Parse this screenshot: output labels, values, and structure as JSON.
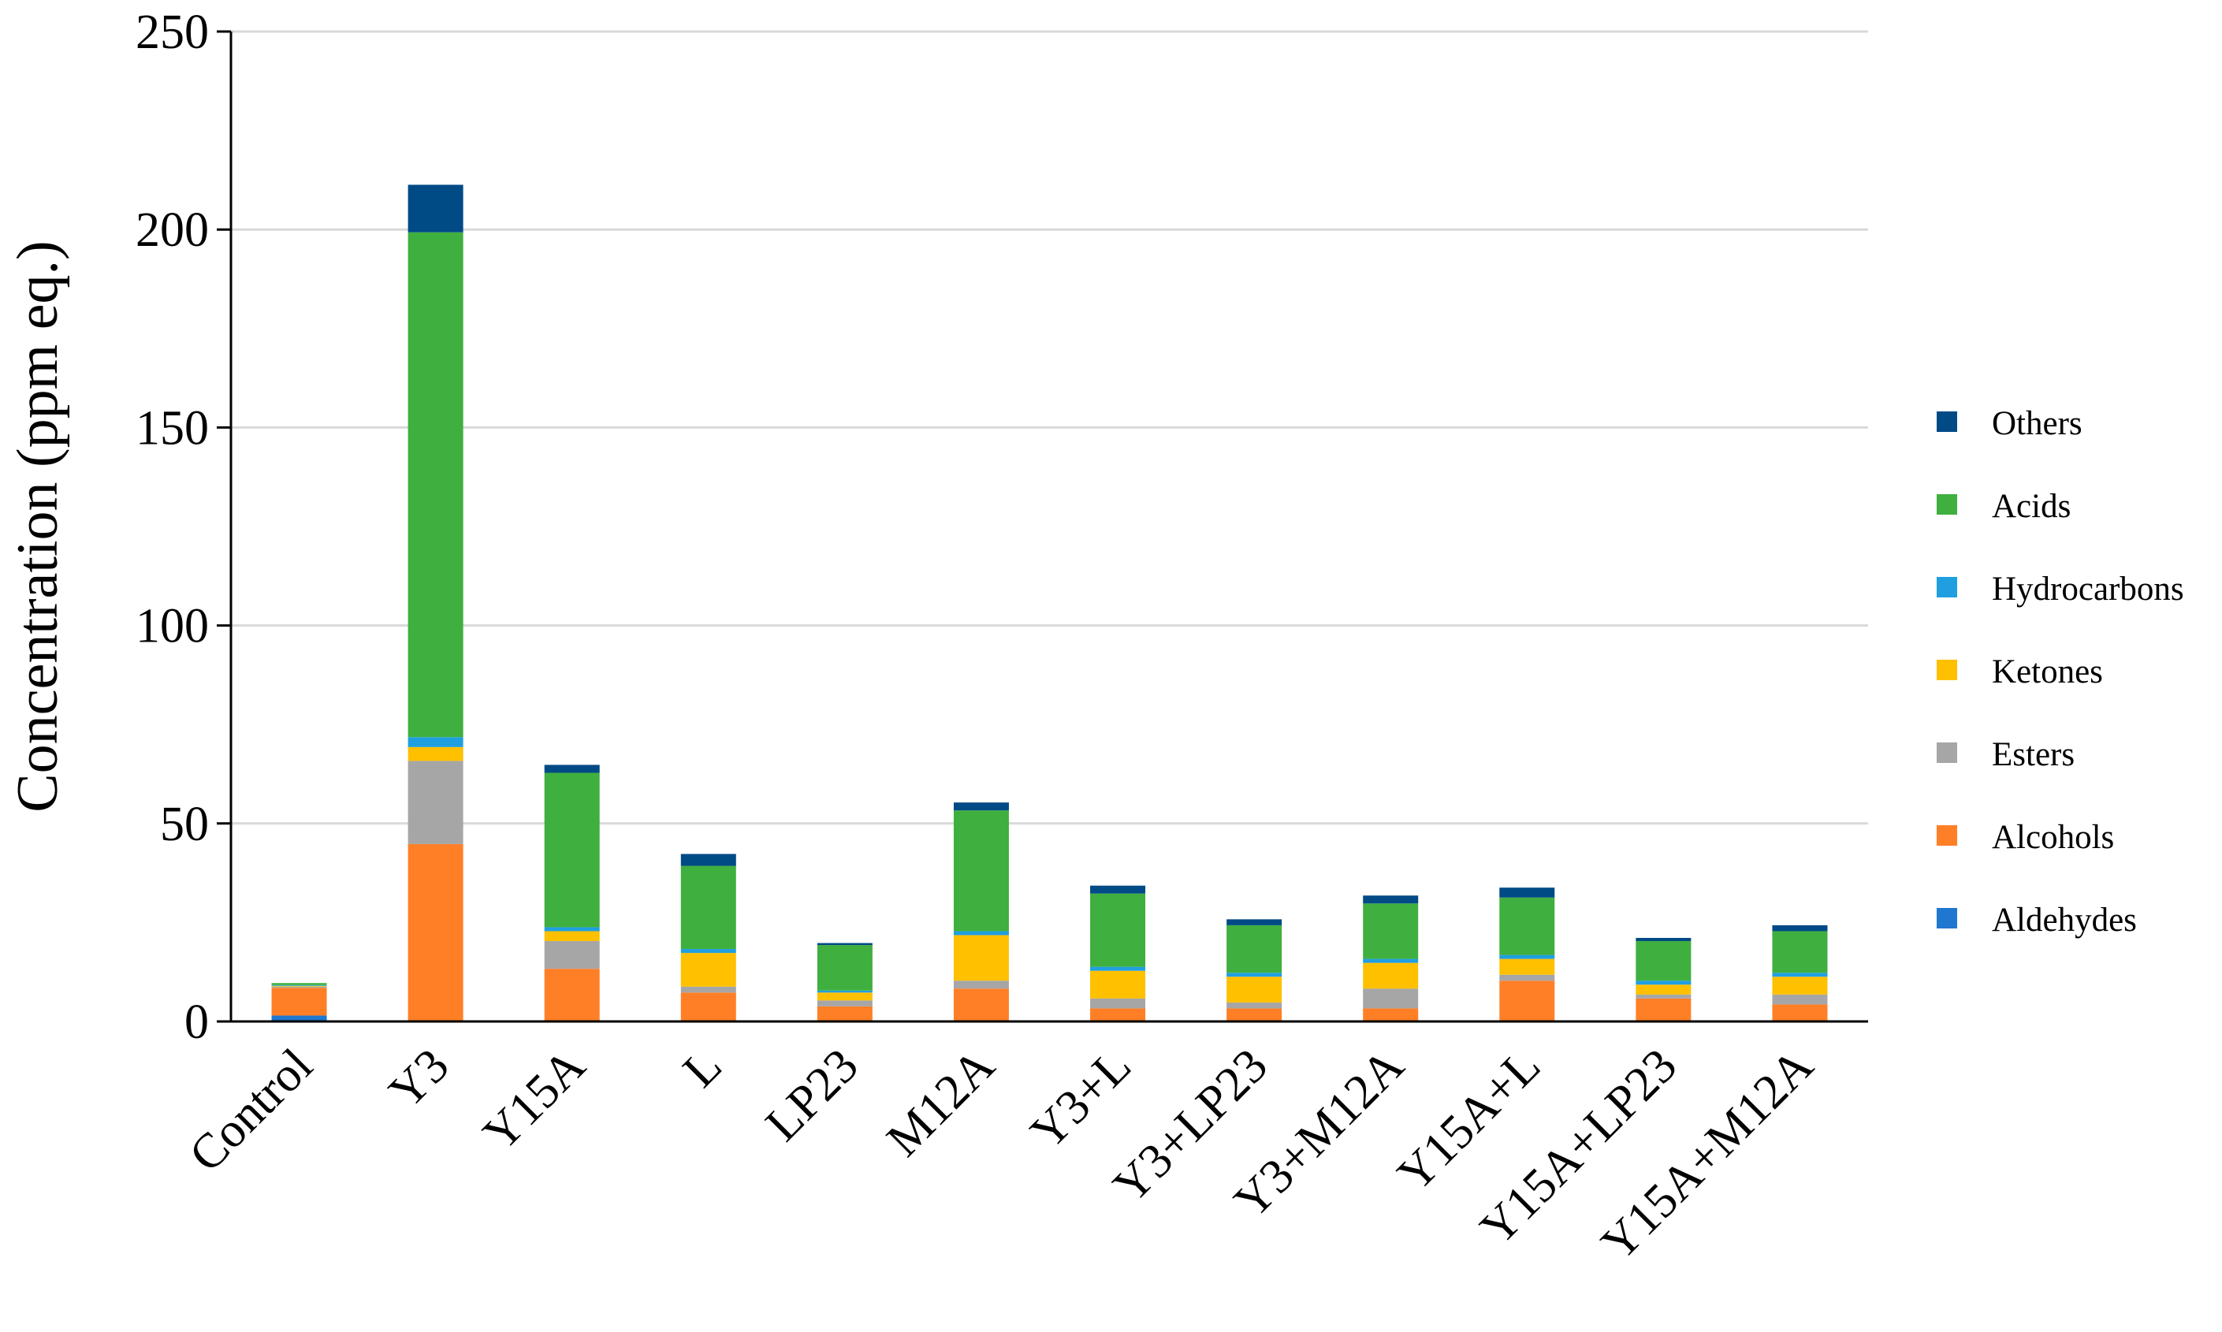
{
  "chart_data": {
    "type": "bar",
    "stacked": true,
    "title": "",
    "xlabel": "",
    "ylabel": "Concentration (ppm eq.)",
    "ylim": [
      0,
      250
    ],
    "yticks": [
      0,
      50,
      100,
      150,
      200,
      250
    ],
    "grid": "horizontal",
    "legend_position": "right",
    "categories": [
      "Control",
      "Y3",
      "Y15A",
      "L",
      "LP23",
      "M12A",
      "Y3+L",
      "Y3+LP23",
      "Y3+M12A",
      "Y15A+L",
      "Y15A+LP23",
      "Y15A+M12A"
    ],
    "series": [
      {
        "name": "Aldehydes",
        "color": "#1f77d0",
        "values": [
          1.5,
          0.3,
          0.3,
          0.3,
          0.3,
          0.3,
          0.3,
          0.3,
          0.3,
          0.3,
          0.3,
          0.3
        ]
      },
      {
        "name": "Alcohols",
        "color": "#ff7f27",
        "values": [
          7.0,
          44.5,
          13.0,
          7.0,
          3.5,
          8.0,
          3.0,
          3.0,
          3.0,
          10.0,
          5.5,
          4.0
        ]
      },
      {
        "name": "Esters",
        "color": "#a6a6a6",
        "values": [
          0.3,
          21.0,
          7.0,
          1.5,
          1.5,
          2.0,
          2.5,
          1.5,
          5.0,
          1.5,
          1.0,
          2.5
        ]
      },
      {
        "name": "Ketones",
        "color": "#ffc000",
        "values": [
          0.2,
          3.5,
          2.5,
          8.5,
          2.0,
          11.5,
          7.0,
          6.5,
          6.5,
          4.0,
          2.5,
          4.5
        ]
      },
      {
        "name": "Hydrocarbons",
        "color": "#1f9fe0",
        "values": [
          0.2,
          2.5,
          1.0,
          1.0,
          0.5,
          1.0,
          1.0,
          1.0,
          1.0,
          1.0,
          1.0,
          1.0
        ]
      },
      {
        "name": "Acids",
        "color": "#3faf3f",
        "values": [
          0.5,
          127.5,
          39.0,
          21.0,
          11.5,
          30.5,
          18.5,
          12.0,
          14.0,
          14.5,
          10.0,
          10.5
        ]
      },
      {
        "name": "Others",
        "color": "#004a86",
        "values": [
          0,
          12.0,
          2.0,
          3.0,
          0.5,
          2.0,
          2.0,
          1.5,
          2.0,
          2.5,
          0.8,
          1.5
        ]
      }
    ],
    "legend_order": [
      "Others",
      "Acids",
      "Hydrocarbons",
      "Ketones",
      "Esters",
      "Alcohols",
      "Aldehydes"
    ]
  }
}
